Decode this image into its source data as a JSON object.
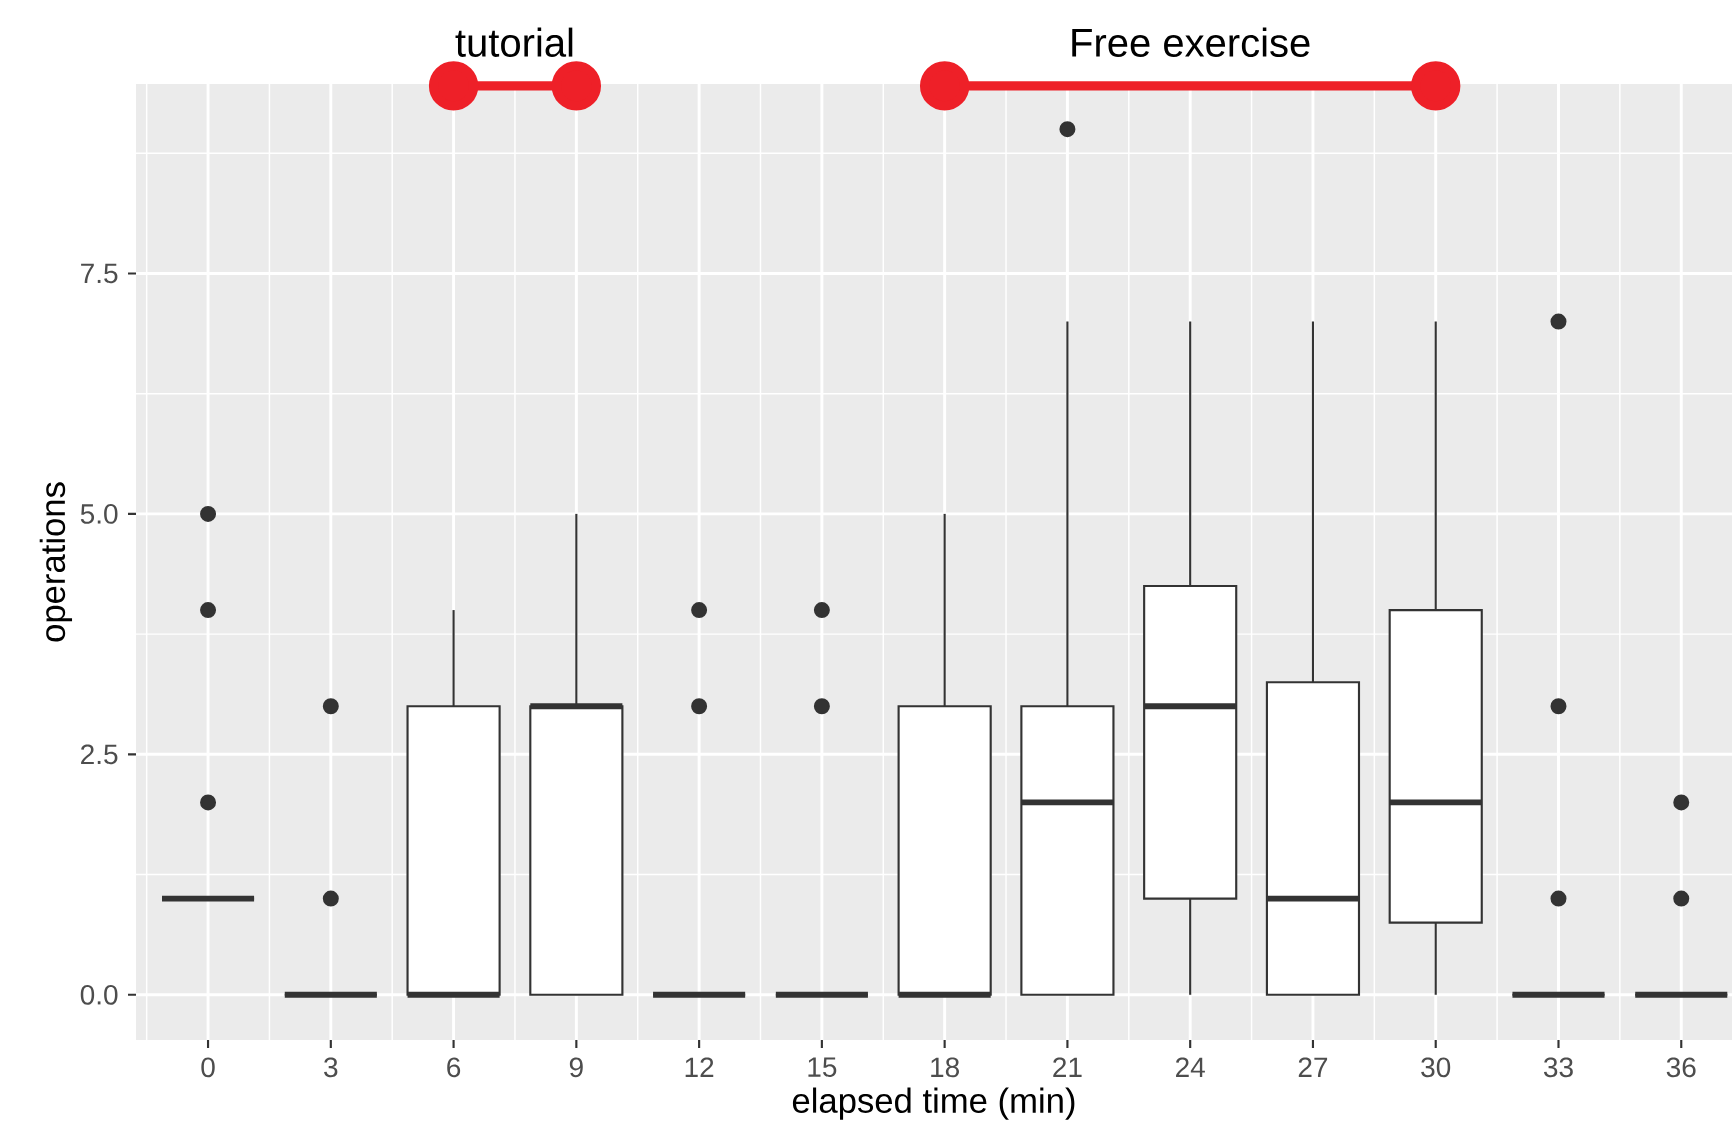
{
  "chart_data": {
    "type": "box",
    "xlabel": "elapsed time (min)",
    "ylabel": "operations",
    "x": [
      0,
      3,
      6,
      9,
      12,
      15,
      18,
      21,
      24,
      27,
      30,
      33,
      36
    ],
    "boxes": [
      {
        "low": 1,
        "q1": 1,
        "median": 1,
        "q3": 1,
        "high": 1,
        "outliers": [
          2,
          4,
          5
        ]
      },
      {
        "low": 0,
        "q1": 0,
        "median": 0,
        "q3": 0,
        "high": 0,
        "outliers": [
          1,
          3
        ]
      },
      {
        "low": 0,
        "q1": 0,
        "median": 0,
        "q3": 3,
        "high": 4
      },
      {
        "low": 0,
        "q1": 0,
        "median": 3,
        "q3": 3,
        "high": 5
      },
      {
        "low": 0,
        "q1": 0,
        "median": 0,
        "q3": 0,
        "high": 0,
        "outliers": [
          3,
          4
        ]
      },
      {
        "low": 0,
        "q1": 0,
        "median": 0,
        "q3": 0,
        "high": 0,
        "outliers": [
          3,
          4
        ]
      },
      {
        "low": 0,
        "q1": 0,
        "median": 0,
        "q3": 3,
        "high": 5
      },
      {
        "low": 0,
        "q1": 0,
        "median": 2,
        "q3": 3,
        "high": 7,
        "outliers": [
          9
        ]
      },
      {
        "low": 0,
        "q1": 1,
        "median": 3,
        "q3": 4.25,
        "high": 7
      },
      {
        "low": 0,
        "q1": 0,
        "median": 1,
        "q3": 3.25,
        "high": 7
      },
      {
        "low": 0,
        "q1": 0.75,
        "median": 2,
        "q3": 4,
        "high": 7
      },
      {
        "low": 0,
        "q1": 0,
        "median": 0,
        "q3": 0,
        "high": 0,
        "outliers": [
          1,
          3,
          7
        ]
      },
      {
        "low": 0,
        "q1": 0,
        "median": 0,
        "q3": 0,
        "high": 0,
        "outliers": [
          1,
          2
        ]
      }
    ],
    "xlim": [
      -1.76,
      37.24
    ],
    "ylim": [
      -0.47,
      9.47
    ],
    "xticks": [
      0,
      3,
      6,
      9,
      12,
      15,
      18,
      21,
      24,
      27,
      30,
      33,
      36
    ],
    "yticks": [
      {
        "value": 0,
        "label": "0.0"
      },
      {
        "value": 2.5,
        "label": "2.5"
      },
      {
        "value": 5,
        "label": "5.0"
      },
      {
        "value": 7.5,
        "label": "7.5"
      }
    ],
    "grid": true,
    "color": "#333333",
    "series": [
      {
        "type": "line",
        "name": "tutorial",
        "x": [
          6,
          9
        ],
        "values": [
          9.45,
          9.45
        ],
        "color": "#ee2028",
        "marker": "circle"
      },
      {
        "type": "line",
        "name": "Free exercise",
        "x": [
          18,
          30
        ],
        "values": [
          9.45,
          9.45
        ],
        "color": "#ee2028",
        "marker": "circle"
      }
    ]
  }
}
